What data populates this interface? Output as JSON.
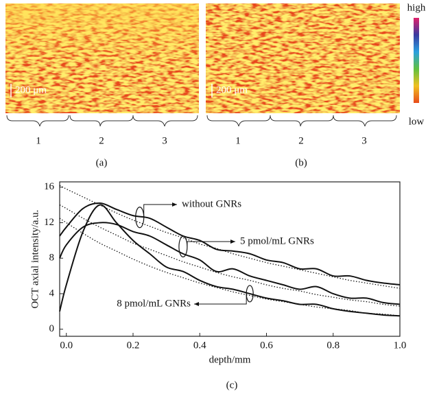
{
  "panels": {
    "a": {
      "scale": "200 μm",
      "regions": [
        "1",
        "2",
        "3"
      ],
      "label": "(a)"
    },
    "b": {
      "scale": "200 μm",
      "regions": [
        "1",
        "2",
        "3"
      ],
      "label": "(b)"
    },
    "colorbar": {
      "high": "high",
      "low": "low"
    }
  },
  "chart_data": {
    "type": "line",
    "label": "(c)",
    "x_label": "depth/mm",
    "y_label": "OCT axial intensity/a.u.",
    "x": [
      -0.02,
      0,
      0.05,
      0.1,
      0.15,
      0.2,
      0.25,
      0.3,
      0.35,
      0.4,
      0.45,
      0.5,
      0.55,
      0.6,
      0.65,
      0.7,
      0.75,
      0.8,
      0.85,
      0.9,
      0.95,
      1.0
    ],
    "series": [
      {
        "name": "without GNRs",
        "color": "#111111",
        "values": [
          10.5,
          11.5,
          13.6,
          14.2,
          13.5,
          12.8,
          12.5,
          11.5,
          10.5,
          10,
          9,
          8.8,
          8.5,
          7.8,
          7.5,
          6.8,
          6.8,
          6,
          6,
          5.5,
          5.2,
          5
        ]
      },
      {
        "name": "5 pmol/mL GNRs",
        "color": "#111111",
        "values": [
          8,
          9.5,
          11.5,
          12,
          11.8,
          11,
          10.5,
          9.5,
          8.5,
          7.8,
          6.5,
          6.8,
          6,
          5.5,
          5,
          4.5,
          4.8,
          4,
          3.5,
          3.5,
          3,
          2.8
        ]
      },
      {
        "name": "8 pmol/mL GNRs",
        "color": "#111111",
        "values": [
          2,
          5,
          11,
          14,
          12,
          10,
          8.5,
          7,
          6.5,
          5.5,
          4.8,
          4.5,
          4,
          3.5,
          3.2,
          2.8,
          2.8,
          2.3,
          2,
          1.8,
          1.6,
          1.5
        ]
      },
      {
        "color": "#111111",
        "dotted": true,
        "values": [
          16.2,
          15.8,
          14.9,
          14.0,
          13.1,
          12.3,
          11.6,
          10.9,
          10.3,
          9.6,
          9.1,
          8.5,
          8.0,
          7.5,
          7.1,
          6.7,
          6.3,
          5.9,
          5.5,
          5.2,
          4.9,
          4.6
        ]
      },
      {
        "color": "#111111",
        "dotted": true,
        "values": [
          14,
          13.6,
          12.5,
          11.5,
          10.6,
          9.7,
          9.0,
          8.3,
          7.6,
          7.0,
          6.4,
          5.9,
          5.5,
          5.0,
          4.6,
          4.3,
          3.9,
          3.6,
          3.3,
          3.1,
          2.8,
          2.6
        ]
      },
      {
        "color": "#111111",
        "dotted": true,
        "values": [
          12.5,
          12.0,
          10.8,
          9.7,
          8.8,
          7.9,
          7.1,
          6.4,
          5.8,
          5.2,
          4.7,
          4.2,
          3.8,
          3.4,
          3.1,
          2.8,
          2.5,
          2.3,
          2.1,
          1.8,
          1.7,
          1.5
        ]
      }
    ],
    "xlim": [
      -0.02,
      1.0
    ],
    "ylim": [
      -0.8,
      16.6
    ],
    "xticks": [
      {
        "value": 0,
        "label": "0.0"
      },
      0.2,
      0.4,
      0.6,
      0.8,
      {
        "value": 1,
        "label": "1.0"
      }
    ],
    "yticks": [
      0,
      4,
      8,
      12,
      16
    ]
  }
}
